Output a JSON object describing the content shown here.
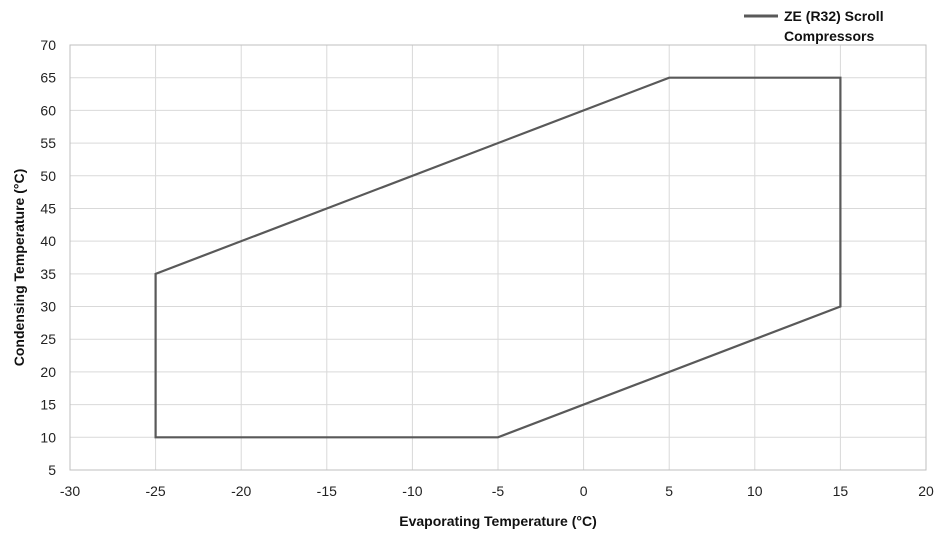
{
  "chart_data": {
    "type": "line",
    "title": "",
    "xlabel": "Evaporating Temperature (°C)",
    "ylabel": "Condensing Temperature (°C)",
    "xlim": [
      -30,
      20
    ],
    "ylim": [
      5,
      70
    ],
    "xticks": [
      -30,
      -25,
      -20,
      -15,
      -10,
      -5,
      0,
      5,
      10,
      15,
      20
    ],
    "yticks": [
      5,
      10,
      15,
      20,
      25,
      30,
      35,
      40,
      45,
      50,
      55,
      60,
      65,
      70
    ],
    "grid": true,
    "legend_position": "top-right",
    "series": [
      {
        "name": "ZE (R32) Scroll Compressors",
        "legend_lines": [
          "ZE (R32) Scroll",
          "Compressors"
        ],
        "color": "#595959",
        "closed": true,
        "points": [
          {
            "x": -25,
            "y": 10
          },
          {
            "x": -25,
            "y": 35
          },
          {
            "x": 5,
            "y": 65
          },
          {
            "x": 15,
            "y": 65
          },
          {
            "x": 15,
            "y": 30
          },
          {
            "x": -5,
            "y": 10
          }
        ]
      }
    ]
  }
}
